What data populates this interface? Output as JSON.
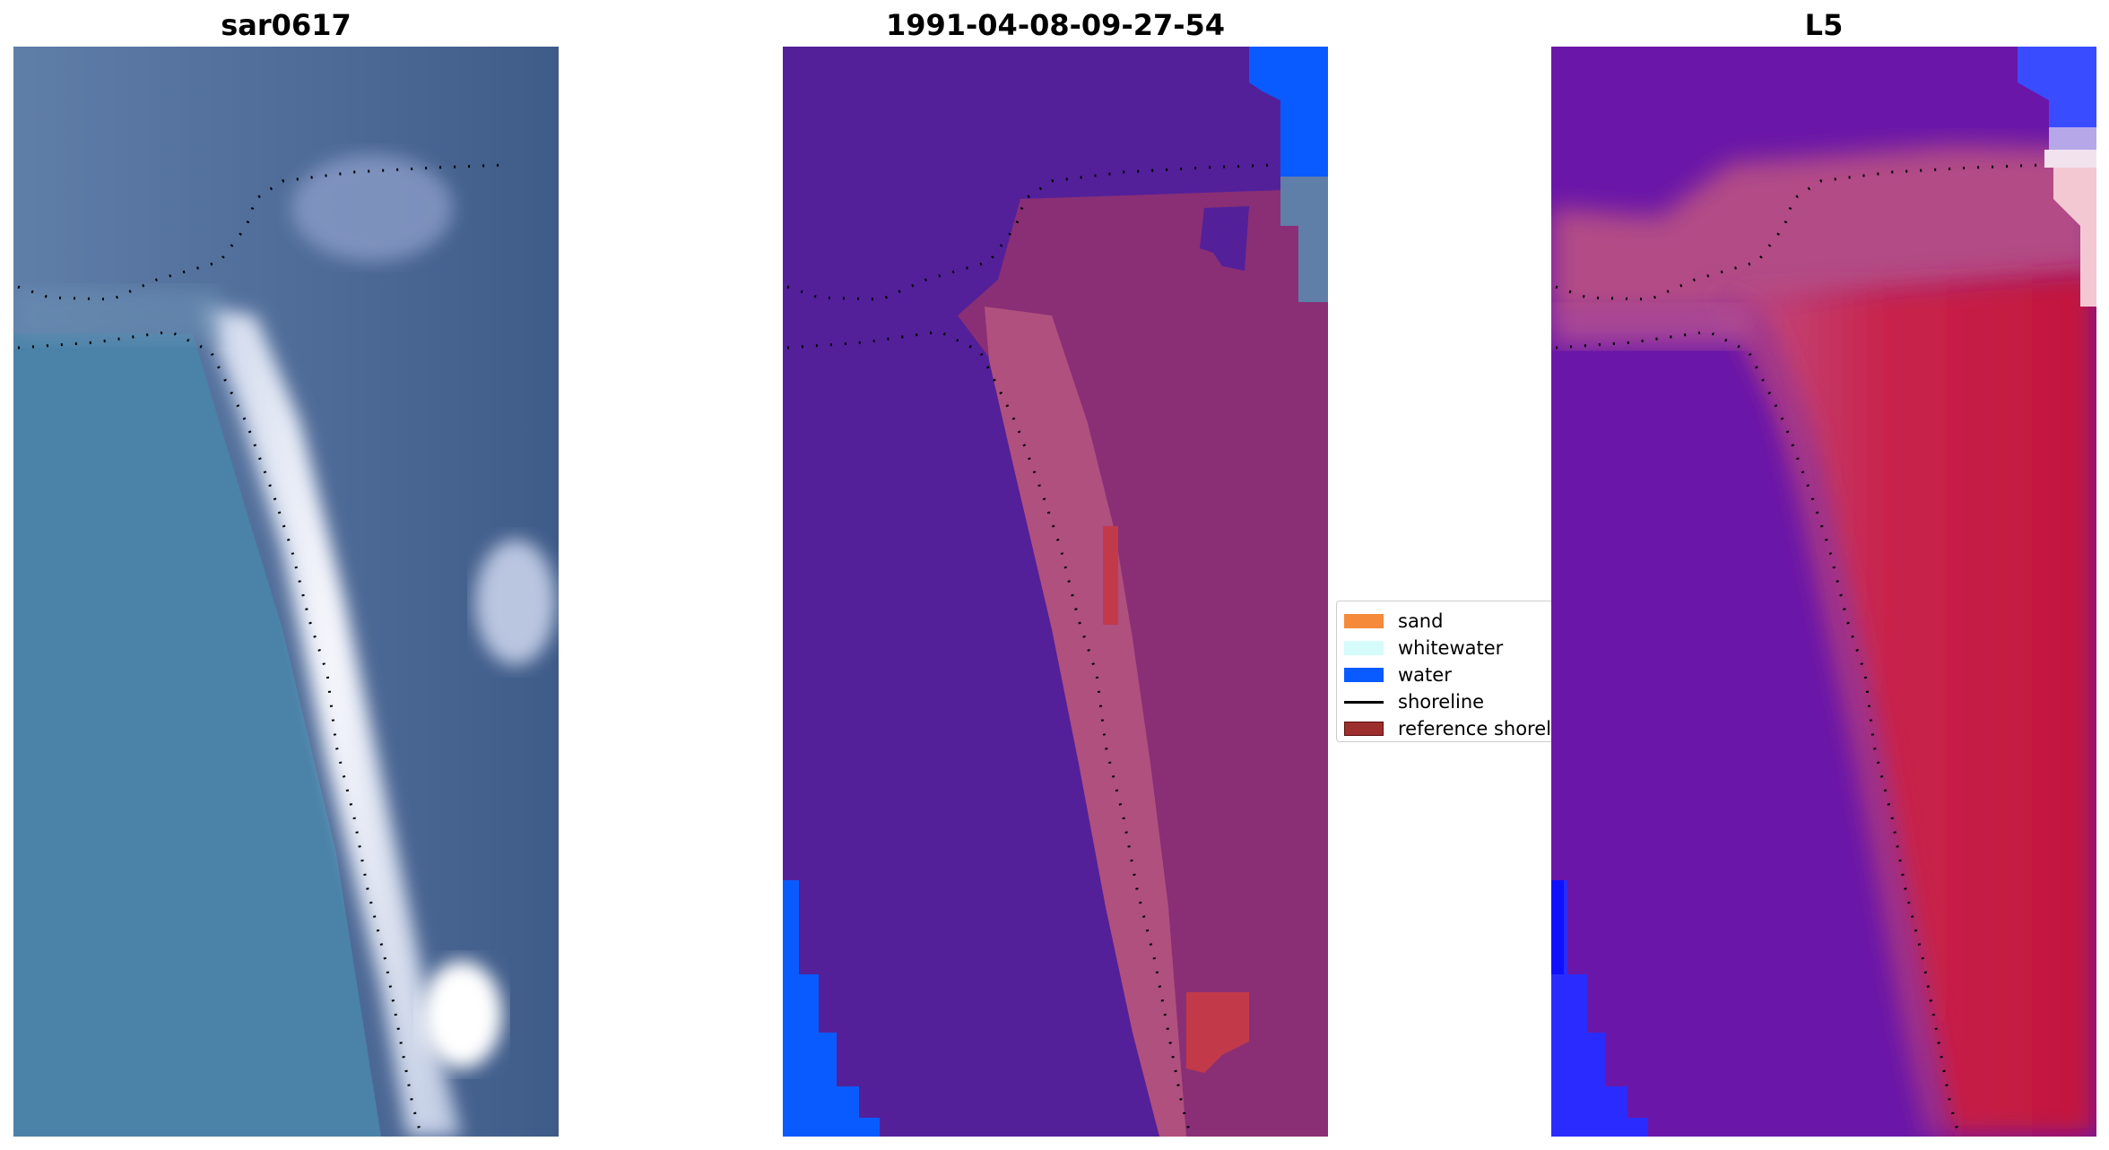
{
  "panels": [
    {
      "title": "sar0617"
    },
    {
      "title": "1991-04-08-09-27-54"
    },
    {
      "title": "L5"
    }
  ],
  "legend": {
    "items": [
      {
        "label": "sand",
        "color": "#f58a3a",
        "kind": "patch"
      },
      {
        "label": "whitewater",
        "color": "#d6fbfb",
        "kind": "patch"
      },
      {
        "label": "water",
        "color": "#0a5bff",
        "kind": "patch"
      },
      {
        "label": "shoreline",
        "color": "#000000",
        "kind": "line"
      },
      {
        "label": "reference shoreli",
        "color": "#9c2e2e",
        "kind": "patch"
      }
    ]
  },
  "colors": {
    "rgb_sea": "#4a82a8",
    "rgb_land": "#3f5b88",
    "rgb_surf": "#f2f4fb",
    "class_bg": "#53209a",
    "class_sand_overlay": "#b0507e",
    "class_reference": "#c23a4a",
    "class_water": "#0a5bff",
    "index_blue": "#6a16a8",
    "index_red": "#c2153c",
    "shoreline": "#000000"
  }
}
